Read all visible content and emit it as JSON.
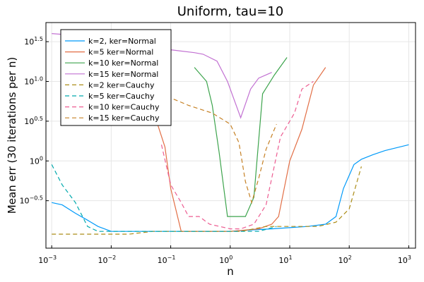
{
  "chart_data": {
    "type": "line",
    "title": "Uniform, tau=10",
    "xlabel": "n",
    "ylabel": "Mean err (30 iterations per n)",
    "xscale": "log10",
    "yscale": "log10",
    "xlim": [
      0.0008,
      1300
    ],
    "ylim": [
      0.08,
      55
    ],
    "grid": true,
    "legend_position": "top-left",
    "x_ticks": [
      {
        "base": "10",
        "exp": "−3"
      },
      {
        "base": "10",
        "exp": "−2"
      },
      {
        "base": "10",
        "exp": "−1"
      },
      {
        "base": "10",
        "exp": "0"
      },
      {
        "base": "10",
        "exp": "1"
      },
      {
        "base": "10",
        "exp": "2"
      },
      {
        "base": "10",
        "exp": "3"
      }
    ],
    "y_ticks": [
      {
        "base": "10",
        "exp": "−0.5"
      },
      {
        "base": "10",
        "exp": "0"
      },
      {
        "base": "10",
        "exp": "0.5"
      },
      {
        "base": "10",
        "exp": "1.0"
      },
      {
        "base": "10",
        "exp": "1.5"
      }
    ],
    "series": [
      {
        "name": "k=2, ker=Normal",
        "color": "#009AF9",
        "dash": "solid",
        "points": [
          [
            0.001,
            0.3
          ],
          [
            0.0015,
            0.28
          ],
          [
            0.0025,
            0.22
          ],
          [
            0.004,
            0.18
          ],
          [
            0.006,
            0.15
          ],
          [
            0.01,
            0.13
          ],
          [
            0.02,
            0.13
          ],
          [
            0.05,
            0.13
          ],
          [
            0.1,
            0.13
          ],
          [
            0.2,
            0.13
          ],
          [
            0.5,
            0.13
          ],
          [
            1,
            0.13
          ],
          [
            2,
            0.135
          ],
          [
            5,
            0.14
          ],
          [
            10,
            0.145
          ],
          [
            20,
            0.15
          ],
          [
            40,
            0.16
          ],
          [
            60,
            0.2
          ],
          [
            80,
            0.45
          ],
          [
            120,
            0.9
          ],
          [
            160,
            1.05
          ],
          [
            250,
            1.2
          ],
          [
            400,
            1.35
          ],
          [
            1000,
            1.6
          ]
        ]
      },
      {
        "name": "k=5 ker=Normal",
        "color": "#E26F46",
        "dash": "solid",
        "points": [
          [
            0.06,
            2.9
          ],
          [
            0.08,
            1.5
          ],
          [
            0.1,
            0.45
          ],
          [
            0.15,
            0.13
          ],
          [
            0.3,
            0.13
          ],
          [
            1,
            0.13
          ],
          [
            3,
            0.14
          ],
          [
            5,
            0.16
          ],
          [
            6.5,
            0.2
          ],
          [
            10,
            1.0
          ],
          [
            16,
            2.5
          ],
          [
            25,
            9.0
          ],
          [
            40,
            15.0
          ]
        ]
      },
      {
        "name": "k=10 ker=Normal",
        "color": "#3DA44D",
        "dash": "solid",
        "points": [
          [
            0.25,
            15.0
          ],
          [
            0.4,
            10.0
          ],
          [
            0.5,
            5.0
          ],
          [
            0.65,
            1.3
          ],
          [
            0.9,
            0.2
          ],
          [
            1.3,
            0.2
          ],
          [
            1.8,
            0.2
          ],
          [
            2.5,
            0.35
          ],
          [
            3.5,
            7.0
          ],
          [
            5.5,
            12.0
          ],
          [
            9.0,
            20.0
          ]
        ]
      },
      {
        "name": "k=15 ker=Normal",
        "color": "#C271D2",
        "dash": "solid",
        "points": [
          [
            0.001,
            40
          ],
          [
            0.01,
            35
          ],
          [
            0.05,
            30
          ],
          [
            0.1,
            25
          ],
          [
            0.25,
            23
          ],
          [
            0.35,
            22
          ],
          [
            0.6,
            18
          ],
          [
            0.9,
            10
          ],
          [
            1.5,
            3.5
          ],
          [
            2.2,
            8
          ],
          [
            3.0,
            11
          ],
          [
            5.0,
            13
          ]
        ]
      },
      {
        "name": "k=2 ker=Cauchy",
        "color": "#AC8D18",
        "dash": "dashed",
        "points": [
          [
            0.001,
            0.12
          ],
          [
            0.003,
            0.12
          ],
          [
            0.006,
            0.12
          ],
          [
            0.01,
            0.12
          ],
          [
            0.02,
            0.12
          ],
          [
            0.05,
            0.13
          ],
          [
            0.1,
            0.13
          ],
          [
            0.2,
            0.13
          ],
          [
            0.4,
            0.13
          ],
          [
            0.7,
            0.13
          ],
          [
            1.0,
            0.13
          ],
          [
            1.5,
            0.13
          ],
          [
            2.5,
            0.14
          ],
          [
            4.0,
            0.15
          ],
          [
            8.0,
            0.15
          ],
          [
            15,
            0.15
          ],
          [
            30,
            0.15
          ],
          [
            60,
            0.17
          ],
          [
            100,
            0.25
          ],
          [
            160,
            0.85
          ]
        ]
      },
      {
        "name": "k=5 ker=Cauchy",
        "color": "#00A9AD",
        "dash": "dashed",
        "points": [
          [
            0.001,
            0.9
          ],
          [
            0.0015,
            0.5
          ],
          [
            0.0025,
            0.3
          ],
          [
            0.004,
            0.15
          ],
          [
            0.006,
            0.13
          ],
          [
            0.01,
            0.13
          ],
          [
            0.1,
            0.13
          ],
          [
            1,
            0.13
          ],
          [
            3,
            0.13
          ],
          [
            6,
            0.15
          ]
        ]
      },
      {
        "name": "k=10 ker=Cauchy",
        "color": "#ED5D92",
        "dash": "dashed",
        "points": [
          [
            0.07,
            1.6
          ],
          [
            0.1,
            0.5
          ],
          [
            0.15,
            0.3
          ],
          [
            0.2,
            0.2
          ],
          [
            0.3,
            0.2
          ],
          [
            0.45,
            0.16
          ],
          [
            1.0,
            0.14
          ],
          [
            1.5,
            0.14
          ],
          [
            2.5,
            0.16
          ],
          [
            4.0,
            0.28
          ],
          [
            7.0,
            2.0
          ],
          [
            12,
            4.0
          ],
          [
            16,
            8.0
          ],
          [
            25,
            10.0
          ]
        ]
      },
      {
        "name": "k=15 ker=Cauchy",
        "color": "#C68125",
        "dash": "dashed",
        "points": [
          [
            0.05,
            6.5
          ],
          [
            0.1,
            6.2
          ],
          [
            0.2,
            5.0
          ],
          [
            0.5,
            4.0
          ],
          [
            1.0,
            2.9
          ],
          [
            1.4,
            1.7
          ],
          [
            1.8,
            0.55
          ],
          [
            2.3,
            0.3
          ],
          [
            3.0,
            0.6
          ],
          [
            4.0,
            1.4
          ],
          [
            6.0,
            2.9
          ]
        ]
      }
    ]
  }
}
